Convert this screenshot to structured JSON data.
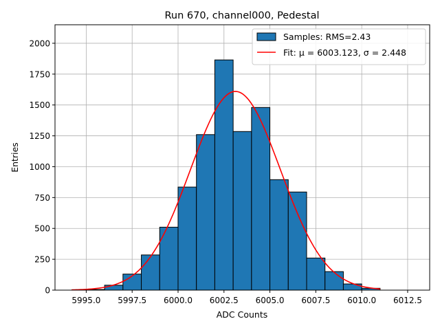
{
  "chart_data": {
    "type": "bar",
    "title": "Run 670, channel000, Pedestal",
    "xlabel": "ADC Counts",
    "ylabel": "Entries",
    "xlim": [
      5993.3,
      6013.7
    ],
    "ylim": [
      0,
      2150
    ],
    "grid": true,
    "legend_position": "top-right",
    "x_ticks": [
      5995.0,
      5997.5,
      6000.0,
      6002.5,
      6005.0,
      6007.5,
      6010.0,
      6012.5
    ],
    "x_tick_labels": [
      "5995.0",
      "5997.5",
      "6000.0",
      "6002.5",
      "6005.0",
      "6007.5",
      "6010.0",
      "6012.5"
    ],
    "y_ticks": [
      0,
      250,
      500,
      750,
      1000,
      1250,
      1500,
      1750,
      2000
    ],
    "y_tick_labels": [
      "0",
      "250",
      "500",
      "750",
      "1000",
      "1250",
      "1500",
      "1750",
      "2000"
    ],
    "series": [
      {
        "name": "Samples: RMS=2.43",
        "kind": "histogram",
        "color": "#1f77b4",
        "edgecolor": "#000000",
        "bin_edges": [
          5995,
          5996,
          5997,
          5998,
          5999,
          6000,
          6001,
          6002,
          6003,
          6004,
          6005,
          6006,
          6007,
          6008,
          6009,
          6010,
          6011
        ],
        "values": [
          5,
          40,
          130,
          285,
          510,
          835,
          1260,
          1865,
          1285,
          1480,
          895,
          795,
          260,
          150,
          50,
          15
        ]
      },
      {
        "name": "Fit: μ = 6003.123, σ = 2.448",
        "kind": "gaussian_fit",
        "color": "#ff0000",
        "mu": 6003.123,
        "sigma": 2.448,
        "amplitude": 1610,
        "x_range": [
          5994.2,
          6011.0
        ]
      }
    ]
  }
}
